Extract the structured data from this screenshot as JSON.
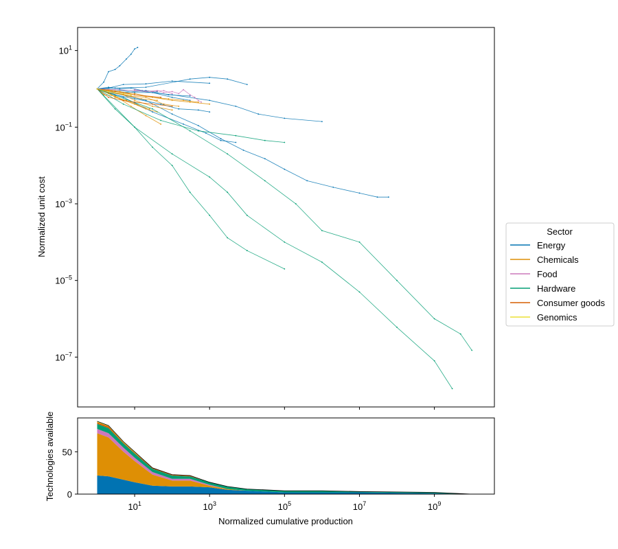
{
  "chart_data": [
    {
      "type": "line",
      "scale": "log-log",
      "ylabel": "Normalized unit cost",
      "xlim": [
        0.3,
        40000000000
      ],
      "ylim": [
        5e-09,
        40
      ],
      "yticks": [
        {
          "label": "10",
          "exp": "1",
          "value": 10
        },
        {
          "label": "10",
          "exp": "−1",
          "value": 0.1
        },
        {
          "label": "10",
          "exp": "−3",
          "value": 0.001
        },
        {
          "label": "10",
          "exp": "−5",
          "value": 1e-05
        },
        {
          "label": "10",
          "exp": "−7",
          "value": 1e-07
        }
      ],
      "legend": {
        "title": "Sector",
        "placement": "right",
        "entries": [
          {
            "name": "Energy",
            "color": "#0173b2"
          },
          {
            "name": "Chemicals",
            "color": "#de8f05"
          },
          {
            "name": "Food",
            "color": "#cc78bc"
          },
          {
            "name": "Hardware",
            "color": "#029e73"
          },
          {
            "name": "Consumer goods",
            "color": "#d55e00"
          },
          {
            "name": "Genomics",
            "color": "#ece133"
          }
        ]
      },
      "series": [
        {
          "sector": "Energy",
          "x": [
            1,
            1.5,
            2,
            3,
            4,
            6,
            8,
            10,
            12
          ],
          "y": [
            1,
            1.5,
            2.8,
            3.2,
            4,
            6,
            8,
            11,
            12
          ]
        },
        {
          "sector": "Energy",
          "x": [
            1,
            2,
            5,
            20,
            100,
            1000
          ],
          "y": [
            1,
            1.05,
            1.3,
            1.35,
            1.6,
            1.4
          ]
        },
        {
          "sector": "Energy",
          "x": [
            1,
            3,
            20,
            300,
            1000,
            3000,
            10000
          ],
          "y": [
            1,
            1.05,
            1.1,
            1.8,
            2,
            1.8,
            1.3
          ]
        },
        {
          "sector": "Energy",
          "x": [
            1,
            10,
            100,
            1000,
            5000,
            20000,
            100000,
            1000000
          ],
          "y": [
            1,
            0.9,
            0.7,
            0.5,
            0.35,
            0.22,
            0.17,
            0.14
          ]
        },
        {
          "sector": "Energy",
          "x": [
            1,
            20,
            100,
            500,
            2000,
            8000,
            30000,
            100000,
            400000,
            2000000,
            10000000,
            30000000,
            60000000
          ],
          "y": [
            1,
            0.5,
            0.22,
            0.11,
            0.05,
            0.025,
            0.015,
            0.008,
            0.004,
            0.0027,
            0.0019,
            0.0015,
            0.0015
          ]
        },
        {
          "sector": "Energy",
          "x": [
            1,
            5,
            30,
            200,
            800,
            2000,
            5000
          ],
          "y": [
            1,
            0.6,
            0.25,
            0.12,
            0.07,
            0.045,
            0.04
          ]
        },
        {
          "sector": "Energy",
          "x": [
            1,
            3,
            10,
            50,
            150,
            500,
            1000
          ],
          "y": [
            1,
            0.7,
            0.55,
            0.4,
            0.3,
            0.28,
            0.25
          ]
        },
        {
          "sector": "Energy",
          "x": [
            1,
            5,
            20,
            80,
            300
          ],
          "y": [
            1,
            0.8,
            0.9,
            0.7,
            0.65
          ]
        },
        {
          "sector": "Energy",
          "x": [
            1,
            3,
            10,
            30,
            100,
            300
          ],
          "y": [
            1,
            0.95,
            0.8,
            0.8,
            0.6,
            0.5
          ]
        },
        {
          "sector": "Energy",
          "x": [
            1,
            2,
            4,
            8,
            16,
            40
          ],
          "y": [
            1,
            1.1,
            1.0,
            1.05,
            0.9,
            0.85
          ]
        },
        {
          "sector": "Chemicals",
          "x": [
            1,
            2,
            4,
            8,
            20,
            50
          ],
          "y": [
            1,
            0.75,
            0.55,
            0.35,
            0.2,
            0.12
          ]
        },
        {
          "sector": "Chemicals",
          "x": [
            1,
            2,
            5,
            10,
            30,
            100
          ],
          "y": [
            1,
            0.8,
            0.7,
            0.5,
            0.35,
            0.28
          ]
        },
        {
          "sector": "Chemicals",
          "x": [
            1,
            3,
            10,
            30,
            100,
            300,
            1000
          ],
          "y": [
            1,
            0.85,
            0.75,
            0.6,
            0.5,
            0.45,
            0.4
          ]
        },
        {
          "sector": "Chemicals",
          "x": [
            1,
            2,
            3,
            6,
            12,
            25
          ],
          "y": [
            1,
            0.8,
            0.6,
            0.5,
            0.38,
            0.3
          ]
        },
        {
          "sector": "Chemicals",
          "x": [
            1,
            1.5,
            3,
            5,
            10,
            20,
            40
          ],
          "y": [
            1,
            0.7,
            0.65,
            0.5,
            0.4,
            0.3,
            0.25
          ]
        },
        {
          "sector": "Chemicals",
          "x": [
            1,
            2,
            4,
            10,
            30,
            80,
            200,
            500
          ],
          "y": [
            1,
            0.95,
            0.85,
            0.7,
            0.6,
            0.55,
            0.5,
            0.45
          ]
        },
        {
          "sector": "Chemicals",
          "x": [
            1,
            2,
            5,
            15,
            40
          ],
          "y": [
            1,
            0.9,
            0.7,
            0.55,
            0.5
          ]
        },
        {
          "sector": "Chemicals",
          "x": [
            1,
            3,
            8,
            20,
            60,
            150
          ],
          "y": [
            1,
            0.8,
            0.65,
            0.6,
            0.4,
            0.35
          ]
        },
        {
          "sector": "Food",
          "x": [
            10,
            20,
            40,
            60,
            100,
            150,
            200,
            300,
            400,
            500,
            600
          ],
          "y": [
            0.95,
            0.85,
            0.9,
            0.8,
            0.85,
            0.75,
            0.95,
            0.7,
            0.6,
            0.5,
            0.45
          ]
        },
        {
          "sector": "Food",
          "x": [
            1,
            3,
            10,
            30,
            60,
            100
          ],
          "y": [
            1,
            0.95,
            0.9,
            0.85,
            0.9,
            0.75
          ]
        },
        {
          "sector": "Hardware",
          "x": [
            1,
            3,
            10,
            30,
            100,
            300,
            1000,
            3000,
            10000,
            100000
          ],
          "y": [
            1,
            0.3,
            0.1,
            0.03,
            0.01,
            0.002,
            0.0005,
            0.00013,
            6e-05,
            2e-05
          ]
        },
        {
          "sector": "Hardware",
          "x": [
            1,
            10,
            100,
            1000,
            3000,
            10000,
            100000,
            1000000,
            10000000,
            100000000,
            1000000000,
            3000000000
          ],
          "y": [
            1,
            0.1,
            0.02,
            0.005,
            0.002,
            0.0005,
            0.0001,
            3e-05,
            5e-06,
            6e-07,
            8e-08,
            1.5e-08
          ]
        },
        {
          "sector": "Hardware",
          "x": [
            1,
            30,
            300,
            3000,
            30000,
            200000,
            1000000,
            10000000,
            100000000,
            1000000000,
            5000000000,
            10000000000
          ],
          "y": [
            1,
            0.3,
            0.08,
            0.02,
            0.004,
            0.001,
            0.0002,
            0.0001,
            1e-05,
            1e-06,
            4e-07,
            1.5e-07
          ]
        },
        {
          "sector": "Hardware",
          "x": [
            1,
            5,
            50,
            500,
            5000,
            30000,
            100000
          ],
          "y": [
            1,
            0.4,
            0.15,
            0.08,
            0.06,
            0.045,
            0.04
          ]
        },
        {
          "sector": "Consumer goods",
          "x": [
            1,
            2,
            5,
            10,
            30,
            100
          ],
          "y": [
            1,
            0.6,
            0.5,
            0.45,
            0.4,
            0.35
          ]
        },
        {
          "sector": "Consumer goods",
          "x": [
            1,
            3,
            10,
            50
          ],
          "y": [
            1,
            0.85,
            0.7,
            0.6
          ]
        },
        {
          "sector": "Genomics",
          "x": [
            1,
            2,
            3,
            5,
            8
          ],
          "y": [
            1,
            0.85,
            0.8,
            0.75,
            0.7
          ]
        }
      ]
    },
    {
      "type": "area",
      "stacked": true,
      "scale": "log-x",
      "xlabel": "Normalized cumulative production",
      "ylabel": "Technologies available",
      "ylim": [
        0,
        90
      ],
      "yticks": [
        {
          "label": "0",
          "value": 0
        },
        {
          "label": "50",
          "value": 50
        }
      ],
      "xticks": [
        {
          "label": "10",
          "exp": "1",
          "value": 10
        },
        {
          "label": "10",
          "exp": "3",
          "value": 1000
        },
        {
          "label": "10",
          "exp": "5",
          "value": 100000
        },
        {
          "label": "10",
          "exp": "7",
          "value": 10000000
        },
        {
          "label": "10",
          "exp": "9",
          "value": 1000000000
        }
      ],
      "x": [
        1,
        2,
        5,
        10,
        30,
        100,
        300,
        1000,
        3000,
        10000,
        30000,
        100000,
        1000000,
        10000000,
        100000000,
        1000000000,
        10000000000
      ],
      "series": [
        {
          "name": "Energy",
          "values": [
            22,
            21,
            17,
            14,
            10,
            9,
            9,
            8,
            5,
            4,
            3,
            2,
            2,
            2,
            1.5,
            1,
            0
          ]
        },
        {
          "name": "Chemicals",
          "values": [
            50,
            46,
            33,
            25,
            13,
            7,
            7,
            2,
            1,
            0,
            0,
            0,
            0,
            0,
            0,
            0,
            0
          ]
        },
        {
          "name": "Food",
          "values": [
            5,
            5,
            5,
            4,
            3,
            2,
            2,
            1,
            0,
            0,
            0,
            0,
            0,
            0,
            0,
            0,
            0
          ]
        },
        {
          "name": "Hardware",
          "values": [
            6,
            6,
            5,
            5,
            4,
            4,
            3,
            3,
            3,
            2,
            2,
            2,
            2,
            1,
            1,
            1,
            0
          ]
        },
        {
          "name": "Consumer goods",
          "values": [
            2,
            2,
            1,
            1,
            1,
            1,
            1,
            0,
            0,
            0,
            0,
            0,
            0,
            0,
            0,
            0,
            0
          ]
        },
        {
          "name": "Genomics",
          "values": [
            1,
            1,
            1,
            1,
            0,
            0,
            0,
            0,
            0,
            0,
            0,
            0,
            0,
            0,
            0,
            0,
            0
          ]
        }
      ]
    }
  ]
}
